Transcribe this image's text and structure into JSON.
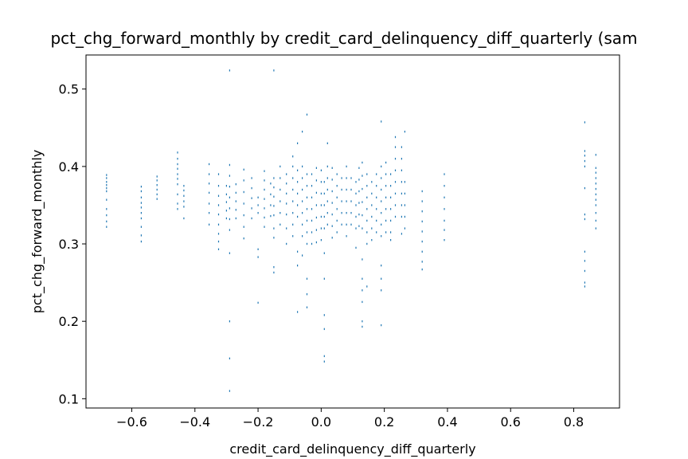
{
  "chart_data": {
    "type": "scatter",
    "title": "pct_chg_forward_monthly by credit_card_delinquency_diff_quarterly (sam",
    "xlabel": "credit_card_delinquency_diff_quarterly",
    "ylabel": "pct_chg_forward_monthly",
    "xlim": [
      -0.745,
      0.945
    ],
    "ylim": [
      0.088,
      0.544
    ],
    "xticks": [
      -0.6,
      -0.4,
      -0.2,
      0.0,
      0.2,
      0.4,
      0.6,
      0.8
    ],
    "xtick_labels": [
      "−0.6",
      "−0.4",
      "−0.2",
      "0.0",
      "0.2",
      "0.4",
      "0.6",
      "0.8"
    ],
    "yticks": [
      0.1,
      0.2,
      0.3,
      0.4,
      0.5
    ],
    "ytick_labels": [
      "0.1",
      "0.2",
      "0.3",
      "0.4",
      "0.5"
    ],
    "grid": false,
    "marker_color": "#1f77b4",
    "marker": "pixel",
    "points": [
      [
        -0.68,
        0.389
      ],
      [
        -0.68,
        0.385
      ],
      [
        -0.68,
        0.38
      ],
      [
        -0.68,
        0.376
      ],
      [
        -0.68,
        0.372
      ],
      [
        -0.68,
        0.368
      ],
      [
        -0.68,
        0.357
      ],
      [
        -0.68,
        0.345
      ],
      [
        -0.68,
        0.337
      ],
      [
        -0.68,
        0.329
      ],
      [
        -0.68,
        0.322
      ],
      [
        -0.57,
        0.374
      ],
      [
        -0.57,
        0.368
      ],
      [
        -0.57,
        0.36
      ],
      [
        -0.57,
        0.353
      ],
      [
        -0.57,
        0.347
      ],
      [
        -0.57,
        0.34
      ],
      [
        -0.57,
        0.333
      ],
      [
        -0.57,
        0.322
      ],
      [
        -0.57,
        0.311
      ],
      [
        -0.57,
        0.303
      ],
      [
        -0.52,
        0.387
      ],
      [
        -0.52,
        0.382
      ],
      [
        -0.52,
        0.376
      ],
      [
        -0.52,
        0.37
      ],
      [
        -0.52,
        0.364
      ],
      [
        -0.52,
        0.358
      ],
      [
        -0.455,
        0.418
      ],
      [
        -0.455,
        0.41
      ],
      [
        -0.455,
        0.403
      ],
      [
        -0.455,
        0.397
      ],
      [
        -0.455,
        0.39
      ],
      [
        -0.455,
        0.384
      ],
      [
        -0.455,
        0.377
      ],
      [
        -0.455,
        0.364
      ],
      [
        -0.455,
        0.352
      ],
      [
        -0.455,
        0.345
      ],
      [
        -0.435,
        0.375
      ],
      [
        -0.435,
        0.369
      ],
      [
        -0.435,
        0.362
      ],
      [
        -0.435,
        0.355
      ],
      [
        -0.435,
        0.348
      ],
      [
        -0.435,
        0.333
      ],
      [
        -0.355,
        0.403
      ],
      [
        -0.355,
        0.39
      ],
      [
        -0.355,
        0.378
      ],
      [
        -0.355,
        0.366
      ],
      [
        -0.355,
        0.352
      ],
      [
        -0.355,
        0.34
      ],
      [
        -0.355,
        0.325
      ],
      [
        -0.325,
        0.39
      ],
      [
        -0.325,
        0.375
      ],
      [
        -0.325,
        0.362
      ],
      [
        -0.325,
        0.35
      ],
      [
        -0.325,
        0.338
      ],
      [
        -0.325,
        0.325
      ],
      [
        -0.325,
        0.313
      ],
      [
        -0.325,
        0.303
      ],
      [
        -0.325,
        0.293
      ],
      [
        -0.3,
        0.375
      ],
      [
        -0.3,
        0.364
      ],
      [
        -0.3,
        0.354
      ],
      [
        -0.3,
        0.343
      ],
      [
        -0.3,
        0.333
      ],
      [
        -0.29,
        0.524
      ],
      [
        -0.29,
        0.402
      ],
      [
        -0.29,
        0.388
      ],
      [
        -0.29,
        0.374
      ],
      [
        -0.29,
        0.36
      ],
      [
        -0.29,
        0.346
      ],
      [
        -0.29,
        0.332
      ],
      [
        -0.29,
        0.318
      ],
      [
        -0.29,
        0.288
      ],
      [
        -0.29,
        0.2
      ],
      [
        -0.29,
        0.152
      ],
      [
        -0.29,
        0.11
      ],
      [
        -0.27,
        0.377
      ],
      [
        -0.27,
        0.366
      ],
      [
        -0.27,
        0.355
      ],
      [
        -0.27,
        0.344
      ],
      [
        -0.27,
        0.333
      ],
      [
        -0.245,
        0.396
      ],
      [
        -0.245,
        0.382
      ],
      [
        -0.245,
        0.367
      ],
      [
        -0.245,
        0.352
      ],
      [
        -0.245,
        0.337
      ],
      [
        -0.245,
        0.322
      ],
      [
        -0.245,
        0.307
      ],
      [
        -0.22,
        0.385
      ],
      [
        -0.22,
        0.372
      ],
      [
        -0.22,
        0.359
      ],
      [
        -0.22,
        0.346
      ],
      [
        -0.22,
        0.333
      ],
      [
        -0.2,
        0.36
      ],
      [
        -0.2,
        0.35
      ],
      [
        -0.2,
        0.34
      ],
      [
        -0.2,
        0.293
      ],
      [
        -0.2,
        0.283
      ],
      [
        -0.2,
        0.224
      ],
      [
        -0.18,
        0.394
      ],
      [
        -0.18,
        0.382
      ],
      [
        -0.18,
        0.37
      ],
      [
        -0.18,
        0.358
      ],
      [
        -0.18,
        0.346
      ],
      [
        -0.18,
        0.334
      ],
      [
        -0.18,
        0.322
      ],
      [
        -0.16,
        0.378
      ],
      [
        -0.16,
        0.364
      ],
      [
        -0.16,
        0.35
      ],
      [
        -0.16,
        0.336
      ],
      [
        -0.15,
        0.524
      ],
      [
        -0.15,
        0.385
      ],
      [
        -0.15,
        0.373
      ],
      [
        -0.15,
        0.361
      ],
      [
        -0.15,
        0.349
      ],
      [
        -0.15,
        0.337
      ],
      [
        -0.15,
        0.32
      ],
      [
        -0.15,
        0.308
      ],
      [
        -0.15,
        0.27
      ],
      [
        -0.15,
        0.263
      ],
      [
        -0.13,
        0.4
      ],
      [
        -0.13,
        0.385
      ],
      [
        -0.13,
        0.37
      ],
      [
        -0.13,
        0.355
      ],
      [
        -0.13,
        0.34
      ],
      [
        -0.13,
        0.325
      ],
      [
        -0.11,
        0.39
      ],
      [
        -0.11,
        0.378
      ],
      [
        -0.11,
        0.365
      ],
      [
        -0.11,
        0.352
      ],
      [
        -0.11,
        0.338
      ],
      [
        -0.11,
        0.32
      ],
      [
        -0.11,
        0.3
      ],
      [
        -0.09,
        0.413
      ],
      [
        -0.09,
        0.4
      ],
      [
        -0.09,
        0.385
      ],
      [
        -0.09,
        0.37
      ],
      [
        -0.09,
        0.355
      ],
      [
        -0.09,
        0.34
      ],
      [
        -0.09,
        0.325
      ],
      [
        -0.09,
        0.31
      ],
      [
        -0.075,
        0.43
      ],
      [
        -0.075,
        0.395
      ],
      [
        -0.075,
        0.38
      ],
      [
        -0.075,
        0.365
      ],
      [
        -0.075,
        0.35
      ],
      [
        -0.075,
        0.335
      ],
      [
        -0.075,
        0.29
      ],
      [
        -0.075,
        0.272
      ],
      [
        -0.075,
        0.212
      ],
      [
        -0.06,
        0.445
      ],
      [
        -0.06,
        0.4
      ],
      [
        -0.06,
        0.385
      ],
      [
        -0.06,
        0.37
      ],
      [
        -0.06,
        0.355
      ],
      [
        -0.06,
        0.34
      ],
      [
        -0.06,
        0.325
      ],
      [
        -0.06,
        0.31
      ],
      [
        -0.06,
        0.285
      ],
      [
        -0.045,
        0.467
      ],
      [
        -0.045,
        0.39
      ],
      [
        -0.045,
        0.375
      ],
      [
        -0.045,
        0.36
      ],
      [
        -0.045,
        0.345
      ],
      [
        -0.045,
        0.33
      ],
      [
        -0.045,
        0.315
      ],
      [
        -0.045,
        0.3
      ],
      [
        -0.045,
        0.255
      ],
      [
        -0.045,
        0.235
      ],
      [
        -0.045,
        0.218
      ],
      [
        -0.03,
        0.39
      ],
      [
        -0.03,
        0.375
      ],
      [
        -0.03,
        0.36
      ],
      [
        -0.03,
        0.345
      ],
      [
        -0.03,
        0.33
      ],
      [
        -0.03,
        0.315
      ],
      [
        -0.03,
        0.3
      ],
      [
        -0.015,
        0.398
      ],
      [
        -0.015,
        0.382
      ],
      [
        -0.015,
        0.366
      ],
      [
        -0.015,
        0.35
      ],
      [
        -0.015,
        0.334
      ],
      [
        -0.015,
        0.318
      ],
      [
        -0.015,
        0.302
      ],
      [
        0.0,
        0.395
      ],
      [
        0.0,
        0.38
      ],
      [
        0.0,
        0.365
      ],
      [
        0.0,
        0.35
      ],
      [
        0.0,
        0.335
      ],
      [
        0.0,
        0.32
      ],
      [
        0.0,
        0.305
      ],
      [
        0.01,
        0.38
      ],
      [
        0.01,
        0.365
      ],
      [
        0.01,
        0.35
      ],
      [
        0.01,
        0.335
      ],
      [
        0.01,
        0.32
      ],
      [
        0.01,
        0.288
      ],
      [
        0.01,
        0.255
      ],
      [
        0.01,
        0.208
      ],
      [
        0.01,
        0.19
      ],
      [
        0.01,
        0.155
      ],
      [
        0.01,
        0.148
      ],
      [
        0.02,
        0.43
      ],
      [
        0.02,
        0.4
      ],
      [
        0.02,
        0.385
      ],
      [
        0.02,
        0.37
      ],
      [
        0.02,
        0.355
      ],
      [
        0.02,
        0.34
      ],
      [
        0.02,
        0.325
      ],
      [
        0.035,
        0.398
      ],
      [
        0.035,
        0.383
      ],
      [
        0.035,
        0.368
      ],
      [
        0.035,
        0.353
      ],
      [
        0.035,
        0.338
      ],
      [
        0.035,
        0.323
      ],
      [
        0.035,
        0.308
      ],
      [
        0.05,
        0.39
      ],
      [
        0.05,
        0.375
      ],
      [
        0.05,
        0.36
      ],
      [
        0.05,
        0.345
      ],
      [
        0.05,
        0.33
      ],
      [
        0.05,
        0.315
      ],
      [
        0.065,
        0.385
      ],
      [
        0.065,
        0.37
      ],
      [
        0.065,
        0.355
      ],
      [
        0.065,
        0.34
      ],
      [
        0.065,
        0.325
      ],
      [
        0.08,
        0.4
      ],
      [
        0.08,
        0.385
      ],
      [
        0.08,
        0.37
      ],
      [
        0.08,
        0.355
      ],
      [
        0.08,
        0.34
      ],
      [
        0.08,
        0.325
      ],
      [
        0.08,
        0.31
      ],
      [
        0.095,
        0.385
      ],
      [
        0.095,
        0.37
      ],
      [
        0.095,
        0.355
      ],
      [
        0.095,
        0.34
      ],
      [
        0.095,
        0.325
      ],
      [
        0.11,
        0.38
      ],
      [
        0.11,
        0.365
      ],
      [
        0.11,
        0.35
      ],
      [
        0.11,
        0.335
      ],
      [
        0.11,
        0.32
      ],
      [
        0.11,
        0.295
      ],
      [
        0.12,
        0.398
      ],
      [
        0.12,
        0.383
      ],
      [
        0.12,
        0.368
      ],
      [
        0.12,
        0.353
      ],
      [
        0.12,
        0.338
      ],
      [
        0.12,
        0.323
      ],
      [
        0.13,
        0.405
      ],
      [
        0.13,
        0.388
      ],
      [
        0.13,
        0.371
      ],
      [
        0.13,
        0.354
      ],
      [
        0.13,
        0.337
      ],
      [
        0.13,
        0.32
      ],
      [
        0.13,
        0.28
      ],
      [
        0.13,
        0.255
      ],
      [
        0.13,
        0.24
      ],
      [
        0.13,
        0.225
      ],
      [
        0.13,
        0.2
      ],
      [
        0.13,
        0.193
      ],
      [
        0.145,
        0.39
      ],
      [
        0.145,
        0.375
      ],
      [
        0.145,
        0.36
      ],
      [
        0.145,
        0.345
      ],
      [
        0.145,
        0.33
      ],
      [
        0.145,
        0.315
      ],
      [
        0.145,
        0.3
      ],
      [
        0.145,
        0.245
      ],
      [
        0.16,
        0.38
      ],
      [
        0.16,
        0.365
      ],
      [
        0.16,
        0.35
      ],
      [
        0.16,
        0.335
      ],
      [
        0.16,
        0.32
      ],
      [
        0.16,
        0.305
      ],
      [
        0.175,
        0.39
      ],
      [
        0.175,
        0.375
      ],
      [
        0.175,
        0.36
      ],
      [
        0.175,
        0.345
      ],
      [
        0.175,
        0.33
      ],
      [
        0.175,
        0.315
      ],
      [
        0.19,
        0.458
      ],
      [
        0.19,
        0.4
      ],
      [
        0.19,
        0.385
      ],
      [
        0.19,
        0.37
      ],
      [
        0.19,
        0.355
      ],
      [
        0.19,
        0.34
      ],
      [
        0.19,
        0.325
      ],
      [
        0.19,
        0.31
      ],
      [
        0.19,
        0.272
      ],
      [
        0.19,
        0.255
      ],
      [
        0.19,
        0.24
      ],
      [
        0.19,
        0.195
      ],
      [
        0.205,
        0.405
      ],
      [
        0.205,
        0.39
      ],
      [
        0.205,
        0.375
      ],
      [
        0.205,
        0.36
      ],
      [
        0.205,
        0.345
      ],
      [
        0.205,
        0.33
      ],
      [
        0.205,
        0.315
      ],
      [
        0.22,
        0.39
      ],
      [
        0.22,
        0.375
      ],
      [
        0.22,
        0.36
      ],
      [
        0.22,
        0.345
      ],
      [
        0.22,
        0.33
      ],
      [
        0.22,
        0.315
      ],
      [
        0.22,
        0.305
      ],
      [
        0.235,
        0.438
      ],
      [
        0.235,
        0.425
      ],
      [
        0.235,
        0.41
      ],
      [
        0.235,
        0.395
      ],
      [
        0.235,
        0.38
      ],
      [
        0.235,
        0.365
      ],
      [
        0.235,
        0.35
      ],
      [
        0.235,
        0.335
      ],
      [
        0.255,
        0.425
      ],
      [
        0.255,
        0.41
      ],
      [
        0.255,
        0.395
      ],
      [
        0.255,
        0.38
      ],
      [
        0.255,
        0.365
      ],
      [
        0.255,
        0.35
      ],
      [
        0.255,
        0.335
      ],
      [
        0.255,
        0.313
      ],
      [
        0.265,
        0.445
      ],
      [
        0.265,
        0.38
      ],
      [
        0.265,
        0.365
      ],
      [
        0.265,
        0.35
      ],
      [
        0.265,
        0.335
      ],
      [
        0.265,
        0.32
      ],
      [
        0.32,
        0.368
      ],
      [
        0.32,
        0.355
      ],
      [
        0.32,
        0.342
      ],
      [
        0.32,
        0.329
      ],
      [
        0.32,
        0.316
      ],
      [
        0.32,
        0.303
      ],
      [
        0.32,
        0.29
      ],
      [
        0.32,
        0.277
      ],
      [
        0.32,
        0.267
      ],
      [
        0.39,
        0.39
      ],
      [
        0.39,
        0.375
      ],
      [
        0.39,
        0.36
      ],
      [
        0.39,
        0.345
      ],
      [
        0.39,
        0.33
      ],
      [
        0.39,
        0.318
      ],
      [
        0.39,
        0.305
      ],
      [
        0.835,
        0.457
      ],
      [
        0.835,
        0.42
      ],
      [
        0.835,
        0.414
      ],
      [
        0.835,
        0.407
      ],
      [
        0.835,
        0.4
      ],
      [
        0.835,
        0.372
      ],
      [
        0.835,
        0.338
      ],
      [
        0.835,
        0.332
      ],
      [
        0.835,
        0.29
      ],
      [
        0.835,
        0.278
      ],
      [
        0.835,
        0.265
      ],
      [
        0.835,
        0.25
      ],
      [
        0.835,
        0.245
      ],
      [
        0.87,
        0.415
      ],
      [
        0.87,
        0.398
      ],
      [
        0.87,
        0.392
      ],
      [
        0.87,
        0.385
      ],
      [
        0.87,
        0.378
      ],
      [
        0.87,
        0.371
      ],
      [
        0.87,
        0.364
      ],
      [
        0.87,
        0.357
      ],
      [
        0.87,
        0.35
      ],
      [
        0.87,
        0.34
      ],
      [
        0.87,
        0.33
      ],
      [
        0.87,
        0.32
      ]
    ]
  }
}
